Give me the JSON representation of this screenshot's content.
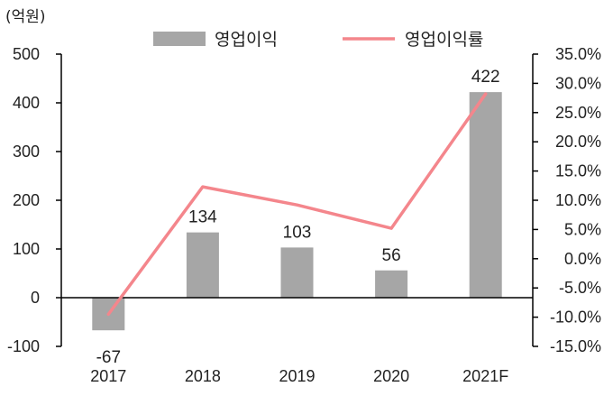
{
  "chart_data": {
    "type": "bar",
    "unit_label": "(억원)",
    "categories": [
      "2017",
      "2018",
      "2019",
      "2020",
      "2021F"
    ],
    "series": [
      {
        "name": "영업이익",
        "type": "bar",
        "axis": "left",
        "color": "#a6a6a6",
        "values": [
          -67,
          134,
          103,
          56,
          422
        ],
        "data_labels": [
          "-67",
          "134",
          "103",
          "56",
          "422"
        ]
      },
      {
        "name": "영업이익률",
        "type": "line",
        "axis": "right",
        "color": "#f4868c",
        "values": [
          -9.5,
          12.3,
          9.2,
          5.2,
          28.2
        ]
      }
    ],
    "left_axis": {
      "ylim": [
        -100,
        500
      ],
      "ticks": [
        500,
        400,
        300,
        200,
        100,
        0,
        -100
      ],
      "tick_labels": [
        "500",
        "400",
        "300",
        "200",
        "100",
        "0",
        "-100"
      ]
    },
    "right_axis": {
      "ylim": [
        -15,
        35
      ],
      "ticks": [
        35,
        30,
        25,
        20,
        15,
        10,
        5,
        0,
        -5,
        -10,
        -15
      ],
      "tick_labels": [
        "35.0%",
        "30.0%",
        "25.0%",
        "20.0%",
        "15.0%",
        "10.0%",
        "5.0%",
        "0.0%",
        "-5.0%",
        "-10.0%",
        "-15.0%"
      ]
    },
    "grid": false,
    "legend_position": "top-center"
  }
}
